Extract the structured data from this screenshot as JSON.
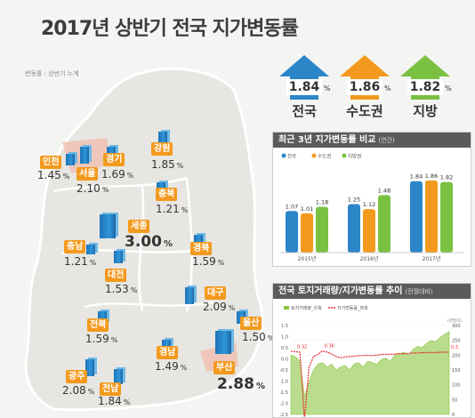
{
  "title": "2017년 상반기 전국 지가변동률",
  "note": "변동률 : 상반기 누계",
  "summary": [
    {
      "value": "1.84",
      "pct": "%",
      "name": "전국",
      "color": "#2b86c8"
    },
    {
      "value": "1.86",
      "pct": "%",
      "name": "수도권",
      "color": "#f39a1e"
    },
    {
      "value": "1.82",
      "pct": "%",
      "name": "지방",
      "color": "#7ac142"
    }
  ],
  "regions": [
    {
      "label": "인천",
      "value": "1.45",
      "pct": "%"
    },
    {
      "label": "서울",
      "value": "2.10",
      "pct": "%"
    },
    {
      "label": "경기",
      "value": "1.69",
      "pct": "%"
    },
    {
      "label": "강원",
      "value": "1.85",
      "pct": "%"
    },
    {
      "label": "충북",
      "value": "1.21",
      "pct": "%"
    },
    {
      "label": "세종",
      "value": "3.00",
      "pct": "%"
    },
    {
      "label": "충남",
      "value": "1.21",
      "pct": "%"
    },
    {
      "label": "대전",
      "value": "1.53",
      "pct": "%"
    },
    {
      "label": "경북",
      "value": "1.59",
      "pct": "%"
    },
    {
      "label": "대구",
      "value": "2.09",
      "pct": "%"
    },
    {
      "label": "전북",
      "value": "1.59",
      "pct": "%"
    },
    {
      "label": "울산",
      "value": "1.50",
      "pct": "%"
    },
    {
      "label": "경남",
      "value": "1.49",
      "pct": "%"
    },
    {
      "label": "부산",
      "value": "2.88",
      "pct": "%"
    },
    {
      "label": "광주",
      "value": "2.08",
      "pct": "%"
    },
    {
      "label": "전남",
      "value": "1.84",
      "pct": "%"
    }
  ],
  "panel1": {
    "title": "최근 3년 지가변동률 비교",
    "sub": "(연간)"
  },
  "panel2": {
    "title": "전국 토지거래량/지가변동률 추이",
    "sub": "(전월대비)"
  },
  "chart_data": [
    {
      "type": "bar",
      "title": "최근 3년 지가변동률 비교",
      "categories": [
        "2015년",
        "2016년",
        "2017년"
      ],
      "series": [
        {
          "name": "전국",
          "values": [
            1.07,
            1.25,
            1.84
          ],
          "color": "#2b86c8"
        },
        {
          "name": "수도권",
          "values": [
            1.01,
            1.12,
            1.86
          ],
          "color": "#f39a1e"
        },
        {
          "name": "지방권",
          "values": [
            1.18,
            1.48,
            1.82
          ],
          "color": "#7ac142"
        }
      ],
      "ylim": [
        0,
        2.2
      ]
    },
    {
      "type": "area",
      "title": "전국 토지거래량/지가변동률 추이",
      "series": [
        {
          "name": "토지거래량_우축",
          "color": "#8cc63f"
        },
        {
          "name": "지가변동률_좌축",
          "color": "#e8262b"
        }
      ],
      "left_ticks": [
        "1.5",
        "1.0",
        "0.5",
        "0.0",
        "-0.5",
        "-1.0",
        "-1.5",
        "-2.0",
        "-2.5"
      ],
      "right_ticks": [
        "300",
        "250",
        "200",
        "150",
        "100",
        "50",
        "0"
      ],
      "right_unit": "(천필지)",
      "annotations": [
        "0.32",
        "0.36",
        "-2.73",
        "0.3"
      ],
      "rate_points": [
        0.35,
        0.32,
        0.3,
        -2.73,
        -0.4,
        0.1,
        0.2,
        0.36,
        0.3,
        0.22,
        0.1,
        0.05,
        0.08,
        0.1,
        0.12,
        0.15,
        0.15,
        0.16,
        0.15,
        0.17,
        0.2,
        0.2,
        0.2,
        0.22,
        0.24,
        0.23,
        0.25,
        0.26,
        0.27,
        0.28,
        0.28,
        0.29,
        0.28,
        0.3,
        0.3,
        0.3
      ],
      "volume_points": [
        200,
        195,
        180,
        60,
        110,
        150,
        170,
        175,
        160,
        170,
        150,
        160,
        165,
        150,
        170,
        175,
        160,
        180,
        175,
        170,
        185,
        190,
        180,
        200,
        205,
        210,
        200,
        220,
        230,
        225,
        240,
        250,
        245,
        260,
        270,
        280
      ]
    }
  ]
}
